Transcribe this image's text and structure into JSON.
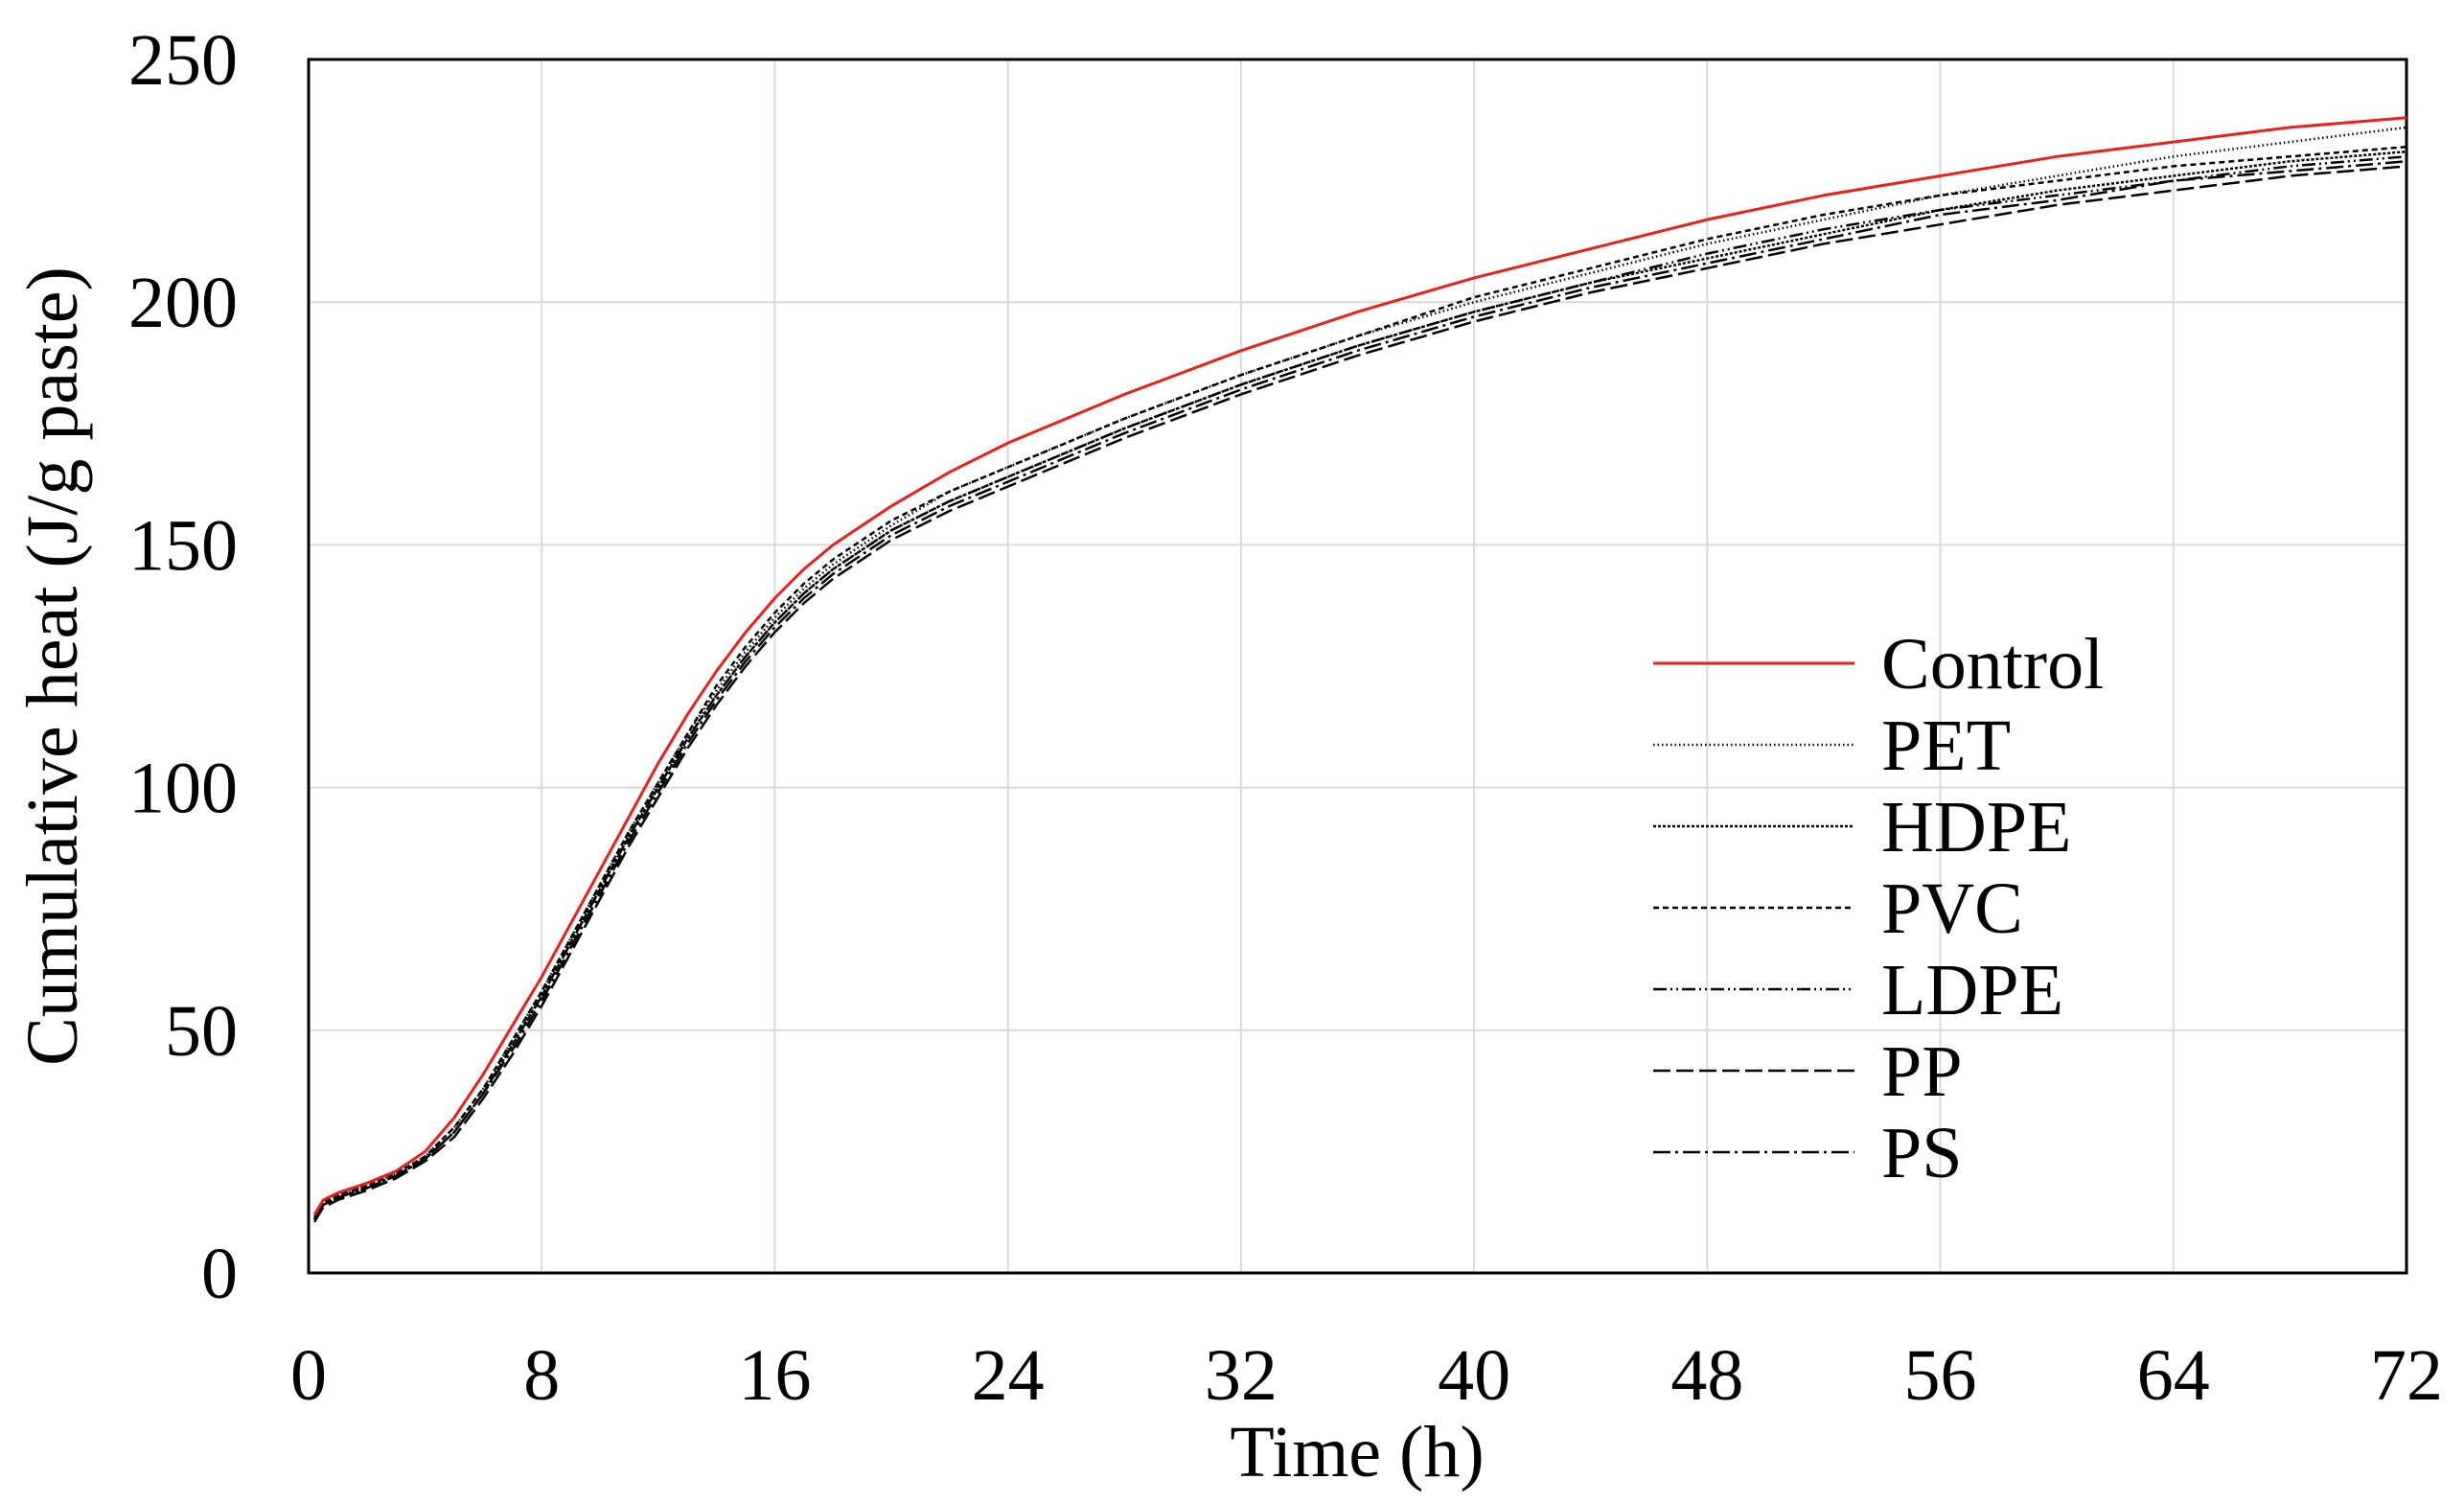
{
  "chart_data": {
    "type": "line",
    "title": "",
    "xlabel": "Time (h)",
    "ylabel": "Cumulative heat (J/g paste)",
    "xlim": [
      0,
      72
    ],
    "ylim": [
      0,
      250
    ],
    "x_ticks": [
      0,
      8,
      16,
      24,
      32,
      40,
      48,
      56,
      64,
      72
    ],
    "y_ticks": [
      0,
      50,
      100,
      150,
      200,
      250
    ],
    "x_tick_labels": [
      "0",
      "8",
      "16",
      "24",
      "32",
      "40",
      "48",
      "56",
      "64",
      "72"
    ],
    "y_tick_labels": [
      "0",
      "50",
      "100",
      "150",
      "200",
      "250"
    ],
    "grid": true,
    "legend_position": "right-center",
    "series": [
      {
        "name": "Control",
        "color": "#e8201e",
        "dash": "solid",
        "x": [
          0.2,
          0.5,
          1,
          2,
          3,
          4,
          5,
          6,
          7,
          8,
          9,
          10,
          11,
          12,
          13,
          14,
          15,
          16,
          17,
          18,
          19,
          20,
          22,
          24,
          28,
          32,
          36,
          40,
          44,
          48,
          52,
          56,
          60,
          64,
          68,
          72
        ],
        "values": [
          12,
          15,
          16.5,
          18.5,
          21,
          25,
          32,
          41,
          51,
          61,
          72,
          83,
          94,
          105,
          115,
          124,
          132,
          139,
          145,
          150,
          154,
          158,
          165,
          171,
          181,
          190,
          198,
          205,
          211,
          217,
          222,
          226,
          230,
          233,
          236,
          238
        ]
      },
      {
        "name": "PET",
        "color": "#000000",
        "dash": "1.5 3",
        "x": [
          0.2,
          0.5,
          1,
          2,
          3,
          4,
          5,
          6,
          7,
          8,
          9,
          10,
          11,
          12,
          13,
          14,
          15,
          16,
          17,
          18,
          19,
          20,
          22,
          24,
          28,
          32,
          36,
          40,
          44,
          48,
          52,
          56,
          60,
          64,
          68,
          72
        ],
        "values": [
          11,
          14.5,
          16,
          18,
          20.5,
          24,
          30,
          38,
          48,
          58,
          69,
          80,
          91,
          101,
          111,
          120,
          128,
          135,
          141,
          146,
          150,
          154,
          161,
          166,
          176,
          185,
          193,
          200,
          206,
          212,
          217,
          222,
          226,
          230,
          233,
          236
        ]
      },
      {
        "name": "HDPE",
        "color": "#000000",
        "dash": "3 2",
        "x": [
          0.2,
          0.5,
          1,
          2,
          3,
          4,
          5,
          6,
          7,
          8,
          9,
          10,
          11,
          12,
          13,
          14,
          15,
          16,
          17,
          18,
          19,
          20,
          22,
          24,
          28,
          32,
          36,
          40,
          44,
          48,
          52,
          56,
          60,
          64,
          68,
          72
        ],
        "values": [
          11,
          14,
          15.5,
          17.5,
          20,
          23.5,
          29,
          37,
          47,
          57,
          68,
          79,
          90,
          100,
          110,
          119,
          127,
          134,
          140,
          145,
          149,
          153,
          159,
          164,
          174,
          183,
          191,
          198,
          204,
          209,
          214,
          219,
          223,
          226,
          229,
          231
        ]
      },
      {
        "name": "PVC",
        "color": "#000000",
        "dash": "6 4",
        "x": [
          0.2,
          0.5,
          1,
          2,
          3,
          4,
          5,
          6,
          7,
          8,
          9,
          10,
          11,
          12,
          13,
          14,
          15,
          16,
          17,
          18,
          19,
          20,
          22,
          24,
          28,
          32,
          36,
          40,
          44,
          48,
          52,
          56,
          60,
          64,
          68,
          72
        ],
        "values": [
          11.5,
          14.5,
          16,
          18,
          20.5,
          24,
          30,
          38,
          48,
          58,
          69,
          80,
          91,
          101,
          111,
          121,
          129,
          136,
          142,
          147,
          151,
          155,
          161,
          166,
          176,
          185,
          193,
          201,
          207,
          213,
          218,
          222,
          225,
          228,
          230,
          232
        ]
      },
      {
        "name": "LDPE",
        "color": "#000000",
        "dash": "14 4 2 4 2 4",
        "x": [
          0.2,
          0.5,
          1,
          2,
          3,
          4,
          5,
          6,
          7,
          8,
          9,
          10,
          11,
          12,
          13,
          14,
          15,
          16,
          17,
          18,
          19,
          20,
          22,
          24,
          28,
          32,
          36,
          40,
          44,
          48,
          52,
          56,
          60,
          64,
          68,
          72
        ],
        "values": [
          11,
          14,
          15.5,
          17.5,
          20,
          23.5,
          29,
          37,
          47,
          57,
          68,
          79,
          90,
          100,
          110,
          119,
          127,
          134,
          140,
          145,
          149,
          153,
          159,
          164,
          174,
          183,
          191,
          198,
          204,
          210,
          215,
          219,
          222,
          225,
          228,
          230
        ]
      },
      {
        "name": "PP",
        "color": "#000000",
        "dash": "18 6",
        "x": [
          0.2,
          0.5,
          1,
          2,
          3,
          4,
          5,
          6,
          7,
          8,
          9,
          10,
          11,
          12,
          13,
          14,
          15,
          16,
          17,
          18,
          19,
          20,
          22,
          24,
          28,
          32,
          36,
          40,
          44,
          48,
          52,
          56,
          60,
          64,
          68,
          72
        ],
        "values": [
          10.5,
          13.5,
          15,
          17,
          19.5,
          23,
          28,
          36,
          45,
          55,
          66,
          77,
          88,
          98,
          108,
          117,
          125,
          132,
          138,
          143,
          147,
          151,
          157,
          162,
          172,
          181,
          189,
          196,
          202,
          207,
          212,
          216,
          220,
          223,
          226,
          228
        ]
      },
      {
        "name": "PS",
        "color": "#000000",
        "dash": "18 5 3 5",
        "x": [
          0.2,
          0.5,
          1,
          2,
          3,
          4,
          5,
          6,
          7,
          8,
          9,
          10,
          11,
          12,
          13,
          14,
          15,
          16,
          17,
          18,
          19,
          20,
          22,
          24,
          28,
          32,
          36,
          40,
          44,
          48,
          52,
          56,
          60,
          64,
          68,
          72
        ],
        "values": [
          11,
          14,
          15.5,
          17.5,
          20,
          23.5,
          29,
          37,
          46,
          56,
          67,
          78,
          89,
          99,
          109,
          118,
          126,
          133,
          139,
          144,
          148,
          152,
          158,
          163,
          173,
          182,
          190,
          197,
          203,
          208,
          213,
          218,
          221,
          225,
          227,
          229
        ]
      }
    ]
  }
}
